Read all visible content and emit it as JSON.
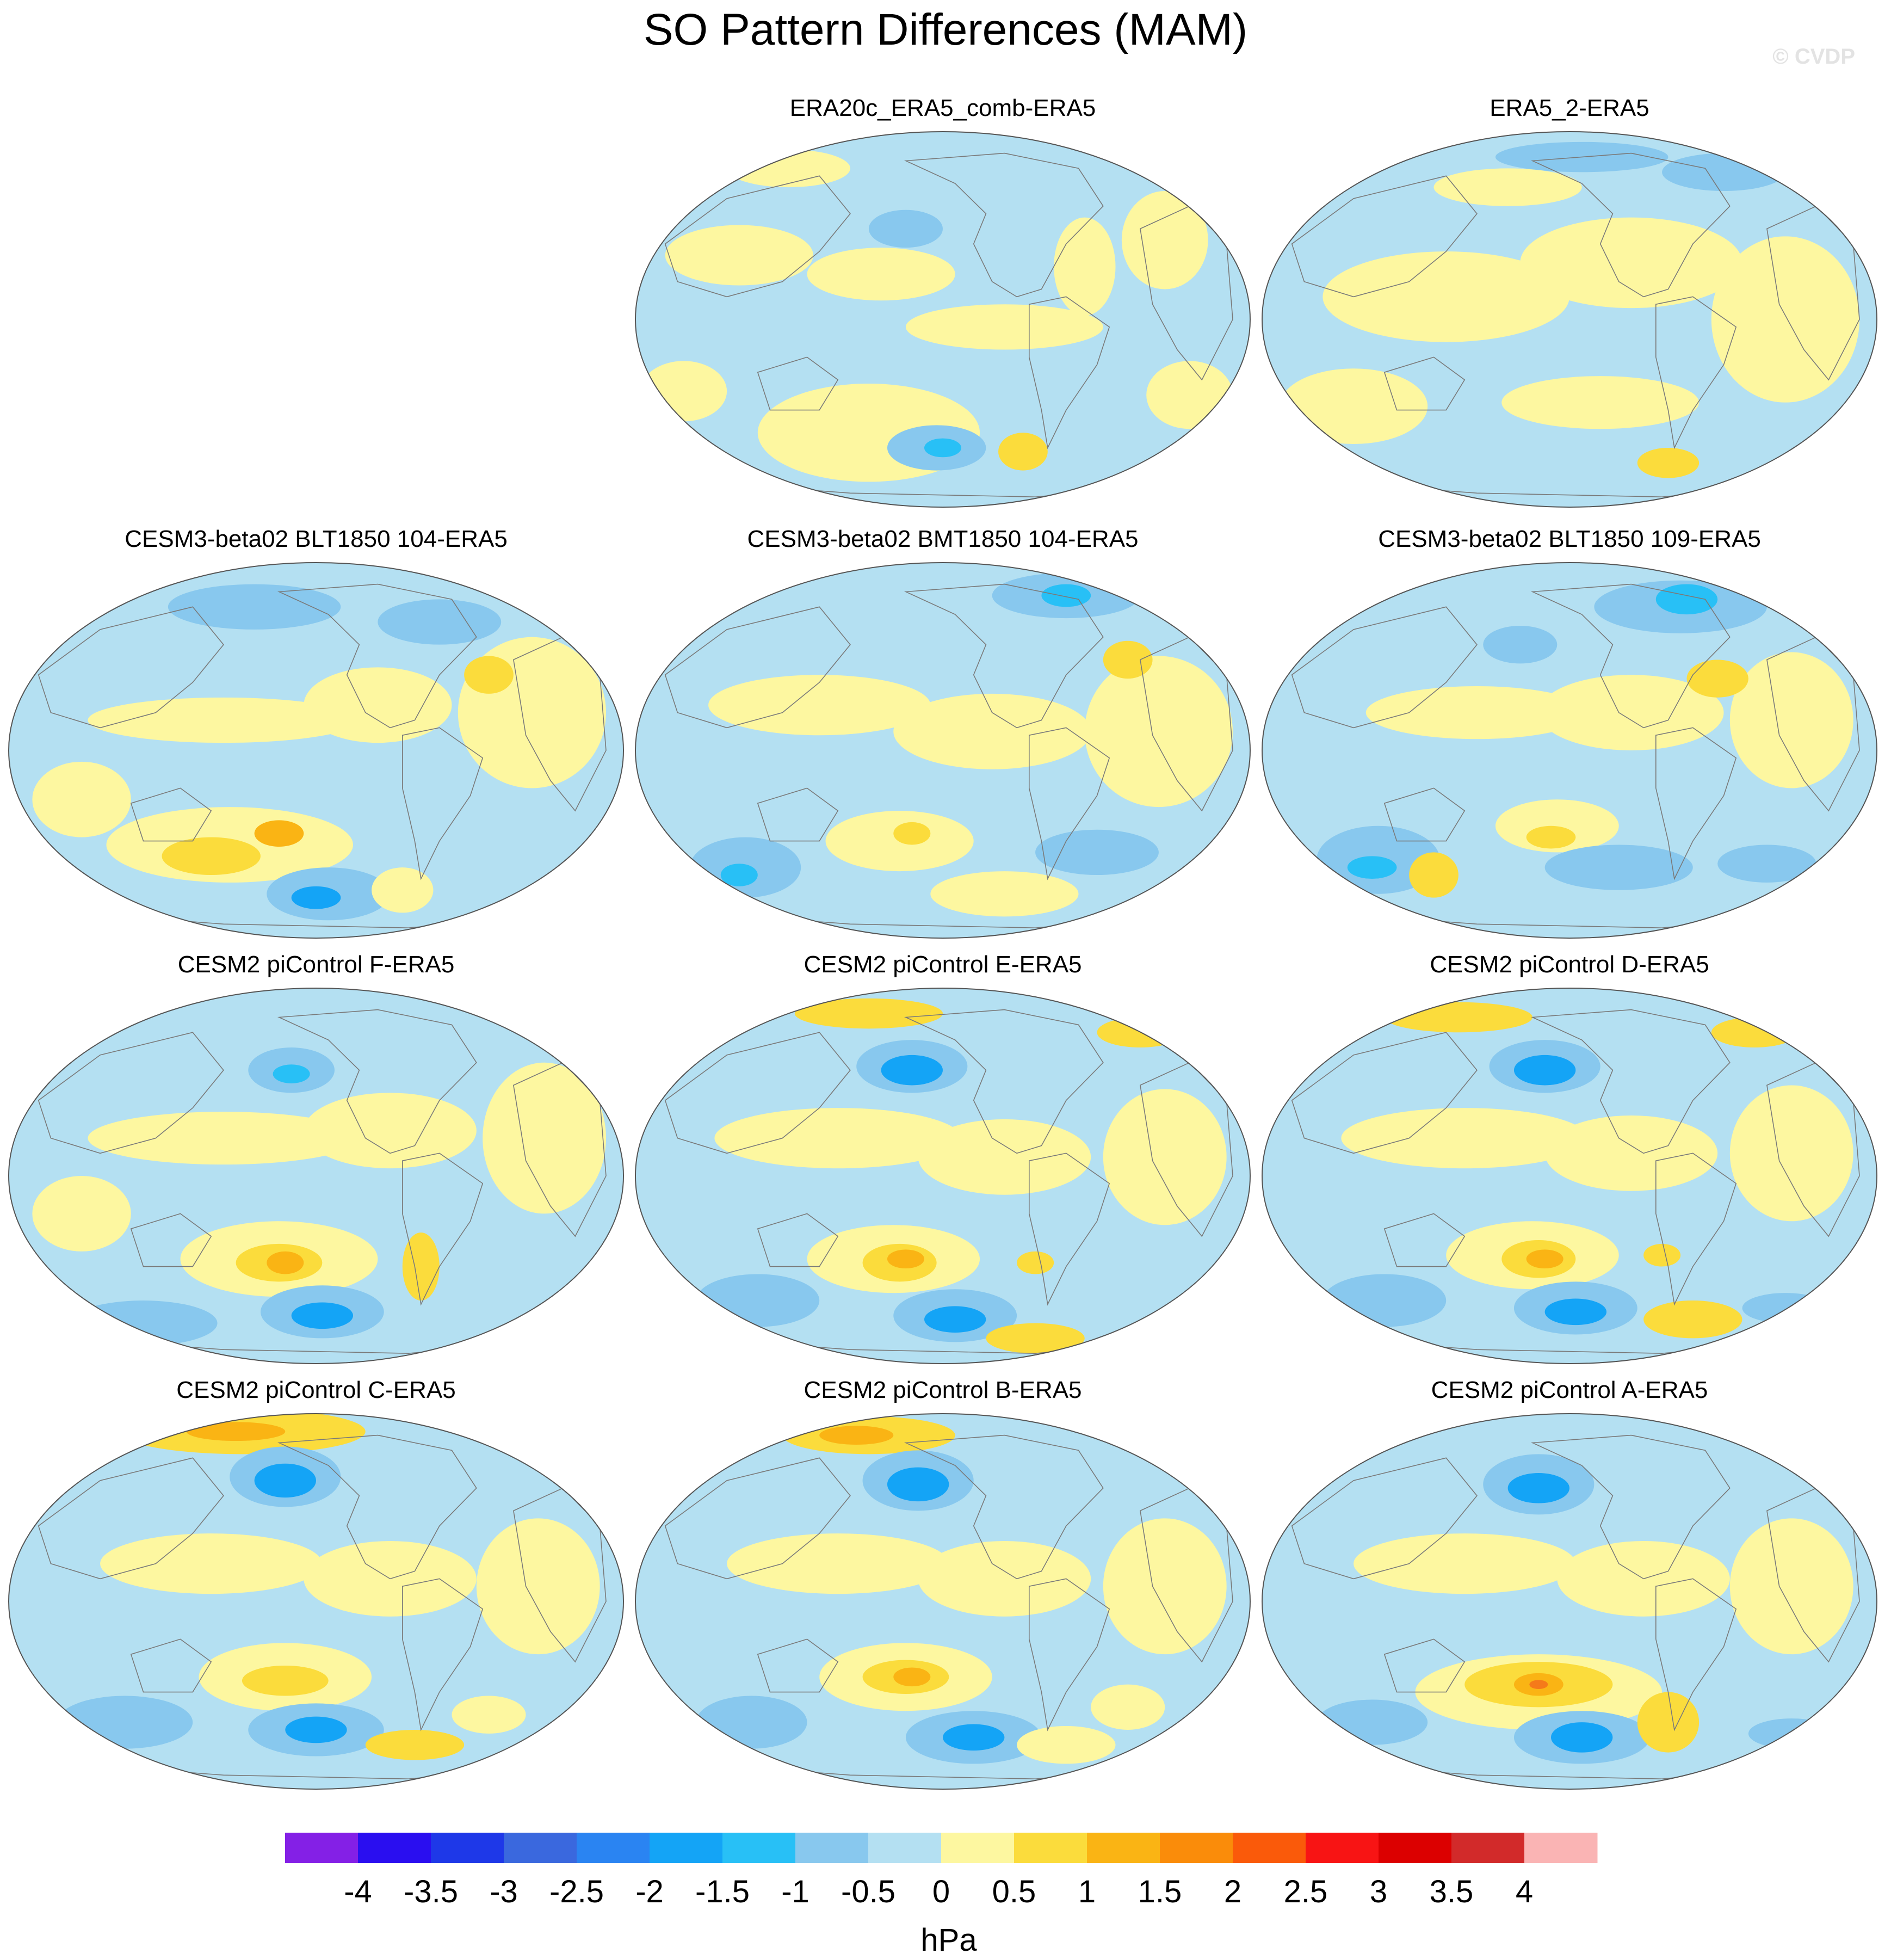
{
  "title": "SO Pattern Differences (MAM)",
  "copyright": "© CVDP",
  "panels": [
    {
      "label": "ERA20c_ERA5_comb-ERA5"
    },
    {
      "label": "ERA5_2-ERA5"
    },
    {
      "label": "CESM3-beta02 BLT1850 104-ERA5"
    },
    {
      "label": "CESM3-beta02 BMT1850 104-ERA5"
    },
    {
      "label": "CESM3-beta02 BLT1850 109-ERA5"
    },
    {
      "label": "CESM2 piControl F-ERA5"
    },
    {
      "label": "CESM2 piControl E-ERA5"
    },
    {
      "label": "CESM2 piControl D-ERA5"
    },
    {
      "label": "CESM2 piControl C-ERA5"
    },
    {
      "label": "CESM2 piControl B-ERA5"
    },
    {
      "label": "CESM2 piControl A-ERA5"
    }
  ],
  "colorbar": {
    "unit": "hPa",
    "tick_labels": [
      "-4",
      "-3.5",
      "-3",
      "-2.5",
      "-2",
      "-1.5",
      "-1",
      "-0.5",
      "0",
      "0.5",
      "1",
      "1.5",
      "2",
      "2.5",
      "3",
      "3.5",
      "4"
    ],
    "colors": [
      "#8420e6",
      "#2a0ef0",
      "#1e38e8",
      "#3a68de",
      "#2a84f2",
      "#14a4f6",
      "#28c0f6",
      "#88c8ee",
      "#b4e0f2",
      "#fdf7a0",
      "#fbdc3c",
      "#fab414",
      "#fa8c0a",
      "#fa5a0a",
      "#f81414",
      "#dc0000",
      "#d22a2a",
      "#fab4b4"
    ]
  }
}
